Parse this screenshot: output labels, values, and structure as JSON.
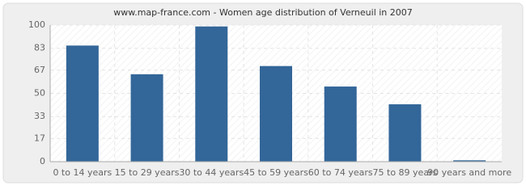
{
  "chart_data": {
    "type": "bar",
    "title": "www.map-france.com - Women age distribution of Verneuil in 2007",
    "categories": [
      "0 to 14 years",
      "15 to 29 years",
      "30 to 44 years",
      "45 to 59 years",
      "60 to 74 years",
      "75 to 89 years",
      "90 years and more"
    ],
    "values": [
      85,
      64,
      99,
      70,
      55,
      42,
      1
    ],
    "color": "#336699",
    "ylim": [
      0,
      100
    ],
    "yticks": [
      0,
      17,
      33,
      50,
      67,
      83,
      100
    ],
    "grid": true
  }
}
